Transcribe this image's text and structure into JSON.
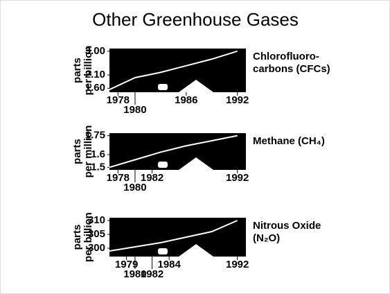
{
  "title": "Other Greenhouse Gases",
  "chart_data": [
    {
      "type": "line",
      "label": [
        "Chlorofluoro-",
        "carbons (CFCs)"
      ],
      "y_label": [
        "parts",
        "per billion"
      ],
      "x": [
        1977,
        1980,
        1983,
        1986,
        1989,
        1992
      ],
      "values": [
        1.55,
        2.0,
        2.2,
        2.45,
        2.7,
        3.0
      ],
      "color": "#ffffff",
      "background": "#000000",
      "xlim": [
        1977,
        1993
      ],
      "ylim": [
        1.45,
        3.1
      ],
      "xticks": [
        1978,
        1980,
        1986,
        1992
      ],
      "yticks": [
        {
          "value": 3.0,
          "label": "3.00"
        },
        {
          "value": 2.1,
          "label": "2.10"
        },
        {
          "value": 1.6,
          "label": "1.60"
        }
      ]
    },
    {
      "type": "line",
      "label": [
        "Methane (CH₄)"
      ],
      "y_label": [
        "parts",
        "per million"
      ],
      "x": [
        1977,
        1980,
        1983,
        1986,
        1989,
        1992
      ],
      "values": [
        1.5,
        1.56,
        1.62,
        1.67,
        1.71,
        1.75
      ],
      "color": "#ffffff",
      "background": "#000000",
      "xlim": [
        1977,
        1993
      ],
      "ylim": [
        1.48,
        1.77
      ],
      "xticks": [
        1978,
        1980,
        1982,
        1992
      ],
      "yticks": [
        1.75,
        1.6,
        1.5
      ]
    },
    {
      "type": "line",
      "label": [
        "Nitrous Oxide",
        "(N₂O)"
      ],
      "y_label": [
        "parts",
        "per billion"
      ],
      "x": [
        1977,
        1980,
        1983,
        1986,
        1989,
        1992
      ],
      "values": [
        299,
        300.5,
        302,
        304,
        306,
        310
      ],
      "color": "#ffffff",
      "background": "#000000",
      "xlim": [
        1977,
        1993
      ],
      "ylim": [
        297,
        311
      ],
      "xticks": [
        1979,
        1980,
        1982,
        1984,
        1992
      ],
      "yticks": [
        310,
        305,
        300
      ]
    }
  ]
}
